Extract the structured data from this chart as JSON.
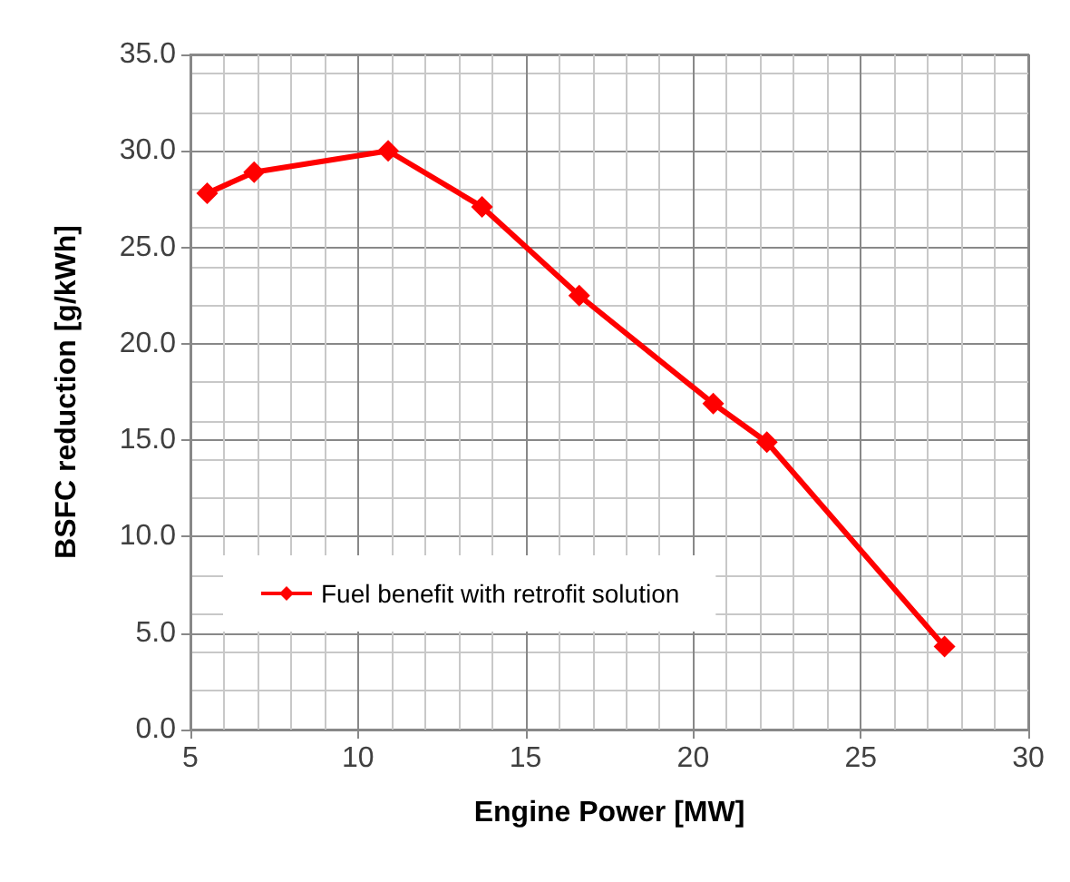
{
  "chart_data": {
    "type": "line",
    "xlabel": "Engine Power [MW]",
    "ylabel": "BSFC reduction [g/kWh]",
    "x": [
      5.5,
      6.9,
      10.9,
      13.7,
      16.6,
      20.6,
      22.2,
      27.5
    ],
    "series": [
      {
        "name": "Fuel benefit with retrofit solution",
        "color": "#ff0000",
        "values": [
          27.8,
          28.9,
          30.0,
          27.1,
          22.5,
          16.9,
          14.9,
          4.3
        ]
      }
    ],
    "xlim": [
      5,
      30
    ],
    "xticks": [
      5,
      10,
      15,
      20,
      25,
      30
    ],
    "ylim": [
      0,
      35
    ],
    "yticks": [
      {
        "value": 0,
        "label": "0.0"
      },
      {
        "value": 5,
        "label": "5.0"
      },
      {
        "value": 10,
        "label": "10.0"
      },
      {
        "value": 15,
        "label": "15.0"
      },
      {
        "value": 20,
        "label": "20.0"
      },
      {
        "value": 25,
        "label": "25.0"
      },
      {
        "value": 30,
        "label": "30.0"
      },
      {
        "value": 35,
        "label": "35.0"
      }
    ],
    "grid": true,
    "legend": "bottom left",
    "marker": "diamond",
    "line_style": "solid"
  }
}
